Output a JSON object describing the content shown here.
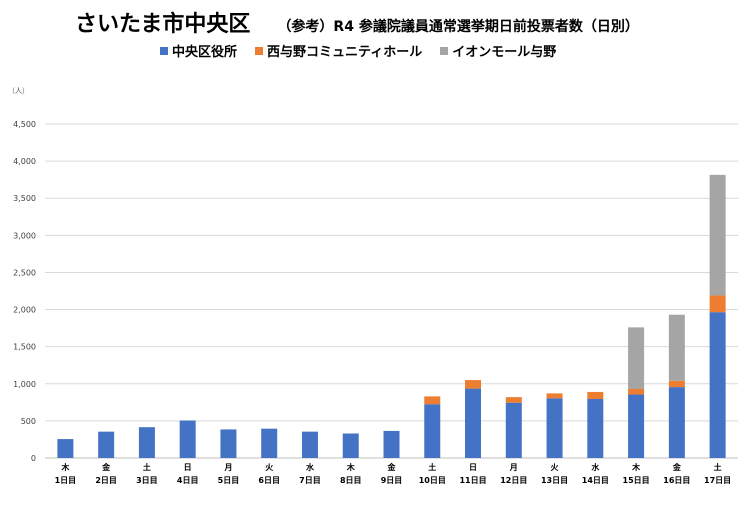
{
  "title": "さいたま市中央区",
  "subtitle": "（参考）R4 参議院議員通常選挙期日前投票者数（日別）",
  "unit_label": "（人）",
  "colors": {
    "s0": "#4472C4",
    "s1": "#ED7D31",
    "s2": "#A5A5A5",
    "grid": "#D9D9D9"
  },
  "chart_data": {
    "type": "bar",
    "stacked": true,
    "title": "さいたま市中央区",
    "subtitle": "（参考）R4 参議院議員通常選挙期日前投票者数（日別）",
    "ylabel": "（人）",
    "ylim": [
      0,
      4500
    ],
    "yticks": [
      0,
      500,
      1000,
      1500,
      2000,
      2500,
      3000,
      3500,
      4000,
      4500
    ],
    "ytick_labels": [
      "0",
      "500",
      "1,000",
      "1,500",
      "2,000",
      "2,500",
      "3,000",
      "3,500",
      "4,000",
      "4,500"
    ],
    "grid": true,
    "legend_position": "top",
    "categories": [
      "1日目",
      "2日目",
      "3日目",
      "4日目",
      "5日目",
      "6日目",
      "7日目",
      "8日目",
      "9日目",
      "10日目",
      "11日目",
      "12日目",
      "13日目",
      "14日目",
      "15日目",
      "16日目",
      "17日目"
    ],
    "weekdays": [
      "木",
      "金",
      "土",
      "日",
      "月",
      "火",
      "水",
      "木",
      "金",
      "土",
      "日",
      "月",
      "火",
      "水",
      "木",
      "金",
      "土"
    ],
    "series": [
      {
        "name": "中央区役所",
        "values": [
          255,
          355,
          415,
          505,
          385,
          395,
          355,
          330,
          365,
          725,
          935,
          745,
          805,
          795,
          855,
          955,
          1965
        ]
      },
      {
        "name": "西与野コミュニティホール",
        "values": [
          0,
          0,
          0,
          0,
          0,
          0,
          0,
          0,
          0,
          105,
          115,
          75,
          65,
          95,
          75,
          85,
          225
        ]
      },
      {
        "name": "イオンモール与野",
        "values": [
          0,
          0,
          0,
          0,
          0,
          0,
          0,
          0,
          0,
          0,
          0,
          0,
          0,
          0,
          830,
          890,
          1625
        ]
      }
    ]
  }
}
